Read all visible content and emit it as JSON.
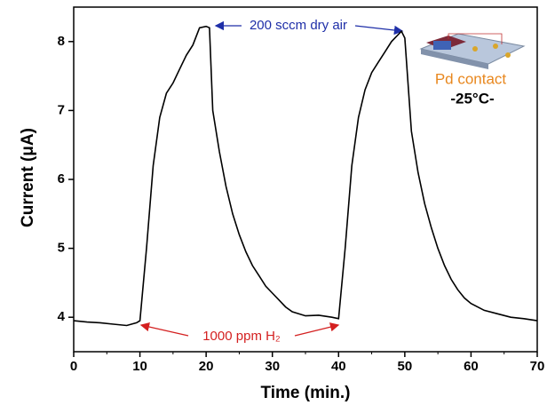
{
  "chart_data": {
    "type": "line",
    "x_label": "Time (min.)",
    "y_label": "Current (μA)",
    "xlim": [
      0,
      70
    ],
    "xticks": [
      0,
      10,
      20,
      30,
      40,
      50,
      60,
      70
    ],
    "ylim": [
      3.5,
      8.5
    ],
    "yticks": [
      4,
      5,
      6,
      7,
      8
    ],
    "x": [
      0,
      2,
      4,
      6,
      8,
      9.5,
      10,
      11,
      12,
      13,
      14,
      15,
      16,
      17,
      18,
      19,
      20,
      20.5,
      21,
      22,
      23,
      24,
      25,
      26,
      27,
      28,
      29,
      30,
      31,
      32,
      33,
      35,
      37,
      39,
      40,
      41,
      42,
      43,
      44,
      45,
      46,
      47,
      48,
      49,
      49.5,
      50,
      51,
      52,
      53,
      54,
      55,
      56,
      57,
      58,
      59,
      60,
      62,
      64,
      66,
      68,
      70
    ],
    "series": [
      {
        "color": "#000000",
        "values": [
          3.95,
          3.93,
          3.92,
          3.9,
          3.88,
          3.92,
          3.95,
          5.0,
          6.2,
          6.9,
          7.25,
          7.4,
          7.6,
          7.8,
          7.95,
          8.2,
          8.22,
          8.2,
          7.0,
          6.4,
          5.9,
          5.5,
          5.2,
          4.95,
          4.75,
          4.6,
          4.45,
          4.35,
          4.25,
          4.15,
          4.08,
          4.02,
          4.03,
          4.0,
          3.98,
          5.0,
          6.2,
          6.9,
          7.3,
          7.55,
          7.7,
          7.85,
          8.0,
          8.1,
          8.15,
          8.05,
          6.7,
          6.1,
          5.65,
          5.3,
          5.0,
          4.75,
          4.55,
          4.4,
          4.28,
          4.2,
          4.1,
          4.05,
          4.0,
          3.98,
          3.95
        ]
      }
    ],
    "annotations": {
      "dry_air": "200 sccm dry air",
      "hydrogen": "1000 ppm H₂",
      "contact": "Pd contact",
      "temperature": "-25°C-"
    }
  }
}
